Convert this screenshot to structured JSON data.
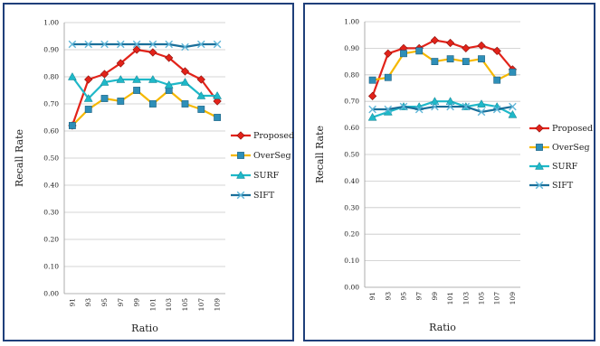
{
  "chart_data": [
    {
      "type": "line",
      "xlabel": "Ratio",
      "ylabel": "Recall Rate",
      "ylim": [
        0,
        1
      ],
      "yticks": [
        "0.00",
        "0.10",
        "0.20",
        "0.30",
        "0.40",
        "0.50",
        "0.60",
        "0.70",
        "0.80",
        "0.90",
        "1.00"
      ],
      "categories": [
        "91",
        "93",
        "95",
        "97",
        "99",
        "101",
        "103",
        "105",
        "107",
        "109"
      ],
      "grid": "horizontal",
      "legend_position": "right",
      "series": [
        {
          "name": "Proposed",
          "color": "#e2231a",
          "marker": "diamond",
          "values": [
            0.62,
            0.79,
            0.81,
            0.85,
            0.9,
            0.89,
            0.87,
            0.82,
            0.79,
            0.71
          ]
        },
        {
          "name": "OverSeg",
          "color": "#f5b800",
          "marker": "square",
          "values": [
            0.62,
            0.68,
            0.72,
            0.71,
            0.75,
            0.7,
            0.75,
            0.7,
            0.68,
            0.65
          ]
        },
        {
          "name": "SURF",
          "color": "#1fb8c8",
          "marker": "triangle",
          "values": [
            0.8,
            0.72,
            0.78,
            0.79,
            0.79,
            0.79,
            0.77,
            0.78,
            0.73,
            0.73
          ]
        },
        {
          "name": "SIFT",
          "color": "#1a6f9a",
          "marker": "x",
          "values": [
            0.92,
            0.92,
            0.92,
            0.92,
            0.92,
            0.92,
            0.92,
            0.91,
            0.92,
            0.92
          ]
        }
      ]
    },
    {
      "type": "line",
      "xlabel": "Ratio",
      "ylabel": "Recall Rate",
      "ylim": [
        0,
        1
      ],
      "yticks": [
        "0.00",
        "0.10",
        "0.20",
        "0.30",
        "0.40",
        "0.50",
        "0.60",
        "0.70",
        "0.80",
        "0.90",
        "1.00"
      ],
      "categories": [
        "91",
        "93",
        "95",
        "97",
        "99",
        "101",
        "103",
        "105",
        "107",
        "109"
      ],
      "grid": "horizontal",
      "legend_position": "right",
      "series": [
        {
          "name": "Proposed",
          "color": "#e2231a",
          "marker": "diamond",
          "values": [
            0.72,
            0.88,
            0.9,
            0.9,
            0.93,
            0.92,
            0.9,
            0.91,
            0.89,
            0.82
          ]
        },
        {
          "name": "OverSeg",
          "color": "#f5b800",
          "marker": "square",
          "values": [
            0.78,
            0.79,
            0.88,
            0.89,
            0.85,
            0.86,
            0.85,
            0.86,
            0.78,
            0.81
          ]
        },
        {
          "name": "SURF",
          "color": "#1fb8c8",
          "marker": "triangle",
          "values": [
            0.64,
            0.66,
            0.68,
            0.68,
            0.7,
            0.7,
            0.68,
            0.69,
            0.68,
            0.65
          ]
        },
        {
          "name": "SIFT",
          "color": "#1a6f9a",
          "marker": "x",
          "values": [
            0.67,
            0.67,
            0.68,
            0.67,
            0.68,
            0.68,
            0.68,
            0.66,
            0.67,
            0.68
          ]
        }
      ]
    }
  ]
}
